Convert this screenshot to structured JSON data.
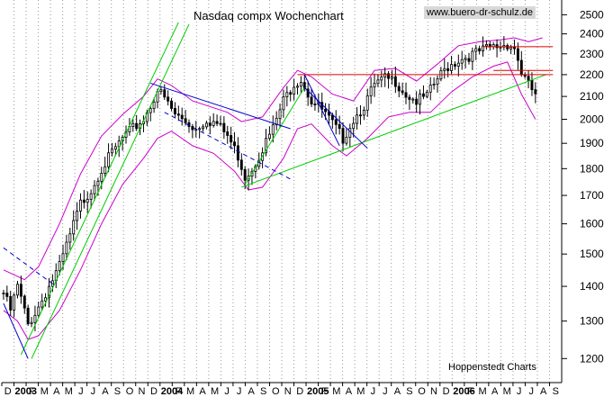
{
  "chart_data": {
    "type": "candlestick",
    "title": "Nasdaq compx Wochenchart",
    "source_label": "www.buero-dr-schulz.de",
    "credit": "Hoppenstedt Charts",
    "y_scale": "log",
    "ylim": [
      1140,
      2580
    ],
    "y_ticks": [
      1200,
      1300,
      1400,
      1500,
      1600,
      1700,
      1800,
      1900,
      2000,
      2100,
      2200,
      2300,
      2400,
      2500
    ],
    "x_tick_labels": [
      "D",
      "2003",
      "F",
      "M",
      "A",
      "M",
      "J",
      "J",
      "A",
      "S",
      "O",
      "N",
      "D",
      "2004",
      "F",
      "M",
      "A",
      "M",
      "J",
      "J",
      "A",
      "S",
      "O",
      "N",
      "D",
      "2005",
      "F",
      "M",
      "A",
      "M",
      "J",
      "J",
      "A",
      "S",
      "O",
      "N",
      "D",
      "2006",
      "F",
      "M",
      "A",
      "M",
      "J",
      "J",
      "A",
      "S"
    ],
    "x_labels_bold": [
      "2003",
      "2004",
      "2005",
      "2006"
    ],
    "grid": "vertical-dotted",
    "colors": {
      "candle": "#000000",
      "bollinger": "#cc00cc",
      "trend_up": "#00cc00",
      "trend_down": "#0000cc",
      "resistance": "#dd0000"
    },
    "close_anchors": [
      {
        "w": 0,
        "v": 1380
      },
      {
        "w": 2,
        "v": 1330
      },
      {
        "w": 4,
        "v": 1400
      },
      {
        "w": 7,
        "v": 1290
      },
      {
        "w": 10,
        "v": 1340
      },
      {
        "w": 13,
        "v": 1400
      },
      {
        "w": 16,
        "v": 1460
      },
      {
        "w": 19,
        "v": 1560
      },
      {
        "w": 22,
        "v": 1670
      },
      {
        "w": 25,
        "v": 1720
      },
      {
        "w": 28,
        "v": 1800
      },
      {
        "w": 31,
        "v": 1860
      },
      {
        "w": 34,
        "v": 1920
      },
      {
        "w": 37,
        "v": 1960
      },
      {
        "w": 40,
        "v": 2000
      },
      {
        "w": 42,
        "v": 2060
      },
      {
        "w": 44,
        "v": 2130
      },
      {
        "w": 46,
        "v": 2090
      },
      {
        "w": 49,
        "v": 2020
      },
      {
        "w": 52,
        "v": 1990
      },
      {
        "w": 55,
        "v": 1960
      },
      {
        "w": 58,
        "v": 2000
      },
      {
        "w": 61,
        "v": 1980
      },
      {
        "w": 64,
        "v": 1930
      },
      {
        "w": 67,
        "v": 1850
      },
      {
        "w": 69,
        "v": 1770
      },
      {
        "w": 71,
        "v": 1800
      },
      {
        "w": 74,
        "v": 1880
      },
      {
        "w": 77,
        "v": 1960
      },
      {
        "w": 80,
        "v": 2080
      },
      {
        "w": 83,
        "v": 2160
      },
      {
        "w": 85,
        "v": 2180
      },
      {
        "w": 88,
        "v": 2080
      },
      {
        "w": 91,
        "v": 2040
      },
      {
        "w": 94,
        "v": 1980
      },
      {
        "w": 97,
        "v": 1920
      },
      {
        "w": 100,
        "v": 2000
      },
      {
        "w": 103,
        "v": 2060
      },
      {
        "w": 106,
        "v": 2150
      },
      {
        "w": 109,
        "v": 2180
      },
      {
        "w": 112,
        "v": 2170
      },
      {
        "w": 115,
        "v": 2110
      },
      {
        "w": 118,
        "v": 2080
      },
      {
        "w": 121,
        "v": 2100
      },
      {
        "w": 124,
        "v": 2180
      },
      {
        "w": 127,
        "v": 2240
      },
      {
        "w": 130,
        "v": 2270
      },
      {
        "w": 133,
        "v": 2290
      },
      {
        "w": 136,
        "v": 2310
      },
      {
        "w": 139,
        "v": 2330
      },
      {
        "w": 142,
        "v": 2340
      },
      {
        "w": 144,
        "v": 2350
      },
      {
        "w": 146,
        "v": 2330
      },
      {
        "w": 148,
        "v": 2210
      },
      {
        "w": 150,
        "v": 2150
      },
      {
        "w": 152,
        "v": 2110
      }
    ],
    "bollinger_upper": [
      {
        "w": 0,
        "v": 1450
      },
      {
        "w": 6,
        "v": 1420
      },
      {
        "w": 10,
        "v": 1460
      },
      {
        "w": 16,
        "v": 1600
      },
      {
        "w": 22,
        "v": 1780
      },
      {
        "w": 28,
        "v": 1930
      },
      {
        "w": 34,
        "v": 2020
      },
      {
        "w": 40,
        "v": 2100
      },
      {
        "w": 44,
        "v": 2180
      },
      {
        "w": 48,
        "v": 2150
      },
      {
        "w": 54,
        "v": 2080
      },
      {
        "w": 60,
        "v": 2050
      },
      {
        "w": 64,
        "v": 2030
      },
      {
        "w": 68,
        "v": 1990
      },
      {
        "w": 74,
        "v": 2010
      },
      {
        "w": 80,
        "v": 2140
      },
      {
        "w": 84,
        "v": 2220
      },
      {
        "w": 88,
        "v": 2190
      },
      {
        "w": 94,
        "v": 2110
      },
      {
        "w": 100,
        "v": 2080
      },
      {
        "w": 106,
        "v": 2220
      },
      {
        "w": 112,
        "v": 2230
      },
      {
        "w": 118,
        "v": 2170
      },
      {
        "w": 124,
        "v": 2250
      },
      {
        "w": 130,
        "v": 2340
      },
      {
        "w": 136,
        "v": 2360
      },
      {
        "w": 142,
        "v": 2370
      },
      {
        "w": 146,
        "v": 2380
      },
      {
        "w": 150,
        "v": 2360
      },
      {
        "w": 154,
        "v": 2380
      }
    ],
    "bollinger_lower": [
      {
        "w": 0,
        "v": 1330
      },
      {
        "w": 4,
        "v": 1300
      },
      {
        "w": 7,
        "v": 1250
      },
      {
        "w": 10,
        "v": 1260
      },
      {
        "w": 16,
        "v": 1330
      },
      {
        "w": 22,
        "v": 1450
      },
      {
        "w": 28,
        "v": 1600
      },
      {
        "w": 34,
        "v": 1740
      },
      {
        "w": 40,
        "v": 1840
      },
      {
        "w": 44,
        "v": 1920
      },
      {
        "w": 48,
        "v": 1950
      },
      {
        "w": 54,
        "v": 1890
      },
      {
        "w": 60,
        "v": 1860
      },
      {
        "w": 66,
        "v": 1790
      },
      {
        "w": 70,
        "v": 1720
      },
      {
        "w": 74,
        "v": 1730
      },
      {
        "w": 80,
        "v": 1840
      },
      {
        "w": 84,
        "v": 1960
      },
      {
        "w": 88,
        "v": 1980
      },
      {
        "w": 94,
        "v": 1890
      },
      {
        "w": 98,
        "v": 1850
      },
      {
        "w": 104,
        "v": 1920
      },
      {
        "w": 110,
        "v": 2010
      },
      {
        "w": 116,
        "v": 2030
      },
      {
        "w": 122,
        "v": 2030
      },
      {
        "w": 128,
        "v": 2120
      },
      {
        "w": 134,
        "v": 2190
      },
      {
        "w": 140,
        "v": 2240
      },
      {
        "w": 144,
        "v": 2260
      },
      {
        "w": 148,
        "v": 2110
      },
      {
        "w": 152,
        "v": 2000
      }
    ],
    "trendlines": [
      {
        "kind": "trend_up",
        "from": {
          "w": 5,
          "v": 1210
        },
        "to": {
          "w": 50,
          "v": 2460
        }
      },
      {
        "kind": "trend_up",
        "from": {
          "w": 8,
          "v": 1200
        },
        "to": {
          "w": 53,
          "v": 2450
        }
      },
      {
        "kind": "trend_up",
        "from": {
          "w": 68,
          "v": 1730
        },
        "to": {
          "w": 155,
          "v": 2200
        }
      },
      {
        "kind": "trend_up",
        "from": {
          "w": 69,
          "v": 1740
        },
        "to": {
          "w": 86,
          "v": 2140
        }
      },
      {
        "kind": "trend_down",
        "from": {
          "w": 0,
          "v": 1350
        },
        "to": {
          "w": 7,
          "v": 1200
        }
      },
      {
        "kind": "trend_down",
        "from": {
          "w": 0,
          "v": 1520
        },
        "to": {
          "w": 15,
          "v": 1400
        },
        "dashed": true
      },
      {
        "kind": "trend_down",
        "from": {
          "w": 42,
          "v": 2160
        },
        "to": {
          "w": 82,
          "v": 1960
        }
      },
      {
        "kind": "trend_down",
        "from": {
          "w": 46,
          "v": 2030
        },
        "to": {
          "w": 82,
          "v": 1760
        },
        "dashed": true
      },
      {
        "kind": "trend_down",
        "from": {
          "w": 86,
          "v": 2140
        },
        "to": {
          "w": 104,
          "v": 1880
        }
      },
      {
        "kind": "trend_down",
        "from": {
          "w": 86,
          "v": 2200
        },
        "to": {
          "w": 96,
          "v": 1890
        }
      },
      {
        "kind": "resistance",
        "from": {
          "w": 137,
          "v": 2335
        },
        "to": {
          "w": 157,
          "v": 2335
        }
      },
      {
        "kind": "resistance",
        "from": {
          "w": 84,
          "v": 2200
        },
        "to": {
          "w": 157,
          "v": 2200
        }
      },
      {
        "kind": "resistance",
        "from": {
          "w": 140,
          "v": 2220
        },
        "to": {
          "w": 157,
          "v": 2220
        }
      }
    ]
  }
}
